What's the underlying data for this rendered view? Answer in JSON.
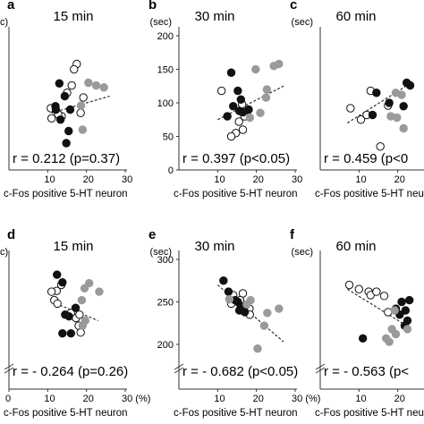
{
  "figure": {
    "xlabel": "c-Fos positive 5-HT neuron",
    "unit_x": "(%)",
    "unit_y": "(sec)",
    "colors": {
      "black": "#111111",
      "gray": "#9a9a9a",
      "open": "#ffffff",
      "line": "#222222"
    }
  },
  "chart_data": [
    {
      "type": "scatter",
      "panel": "a",
      "title": "15 min",
      "show_y_ticks": false,
      "show_y_unit": false,
      "y_unit_display": "c)",
      "xticks": [
        "10",
        "20",
        "30"
      ],
      "x_tick_values": [
        10,
        20,
        30
      ],
      "xlim": [
        0,
        30
      ],
      "ylim": [
        0,
        200
      ],
      "yticks": [],
      "annotation": "r = 0.212 (p=0.37)",
      "fit": {
        "x": [
          11,
          26
        ],
        "y": [
          85,
          110
        ]
      },
      "series": [
        {
          "style": "open",
          "points": [
            [
              17.5,
              158
            ],
            [
              16.8,
              150
            ],
            [
              16.2,
              126
            ],
            [
              15,
              115
            ],
            [
              19.2,
              108
            ],
            [
              18.5,
              85
            ],
            [
              13.6,
              80
            ],
            [
              12.7,
              83
            ],
            [
              11,
              77
            ],
            [
              10.8,
              92
            ]
          ]
        },
        {
          "style": "black",
          "points": [
            [
              13,
              129
            ],
            [
              14.4,
              110
            ],
            [
              12,
              95
            ],
            [
              12.1,
              90
            ],
            [
              15.8,
              90
            ],
            [
              13.3,
              75
            ],
            [
              15.4,
              58
            ],
            [
              14.8,
              40
            ]
          ]
        },
        {
          "style": "gray",
          "points": [
            [
              20.5,
              130
            ],
            [
              22.5,
              126
            ],
            [
              24.5,
              123
            ],
            [
              18.6,
              96
            ],
            [
              19,
              60
            ]
          ]
        }
      ]
    },
    {
      "type": "scatter",
      "panel": "b",
      "title": "30 min",
      "show_y_ticks": true,
      "show_y_unit": true,
      "xticks": [
        "10",
        "20",
        "30"
      ],
      "x_tick_values": [
        10,
        20,
        30
      ],
      "xlim": [
        0,
        30
      ],
      "ylim": [
        0,
        200
      ],
      "yticks": [
        0,
        50,
        100,
        150,
        200
      ],
      "y_tick_labels": [
        "0",
        "50",
        "100",
        "150",
        "200"
      ],
      "annotation": "r = 0.397 (p<0.05)",
      "fit": {
        "x": [
          10,
          27
        ],
        "y": [
          75,
          125
        ]
      },
      "series": [
        {
          "style": "open",
          "points": [
            [
              11,
              118
            ],
            [
              16.3,
              98
            ],
            [
              16.9,
              80
            ],
            [
              15.5,
              72
            ],
            [
              16.5,
              60
            ],
            [
              14.7,
              55
            ],
            [
              13.5,
              50
            ]
          ]
        },
        {
          "style": "black",
          "points": [
            [
              13.5,
              145
            ],
            [
              15.2,
              118
            ],
            [
              16,
              105
            ],
            [
              14,
              95
            ],
            [
              15.6,
              88
            ],
            [
              12.5,
              80
            ],
            [
              18,
              90
            ],
            [
              16.5,
              86
            ]
          ]
        },
        {
          "style": "gray",
          "points": [
            [
              24.5,
              155
            ],
            [
              25.8,
              158
            ],
            [
              19.8,
              150
            ],
            [
              22.7,
              120
            ],
            [
              22.5,
              108
            ],
            [
              21,
              85
            ],
            [
              18.3,
              78
            ]
          ]
        }
      ]
    },
    {
      "type": "scatter",
      "panel": "c",
      "title": "60 min",
      "show_y_ticks": false,
      "show_y_unit": true,
      "xticks": [
        "10",
        "20"
      ],
      "x_tick_values": [
        10,
        20
      ],
      "xlim": [
        0,
        30
      ],
      "ylim": [
        0,
        200
      ],
      "yticks": [],
      "annotation": "r = 0.459 (p<0",
      "fit": {
        "x": [
          7,
          23.5
        ],
        "y": [
          70,
          130
        ]
      },
      "series": [
        {
          "style": "open",
          "points": [
            [
              13,
              118
            ],
            [
              7.8,
              92
            ],
            [
              17.5,
              96
            ],
            [
              12,
              82
            ],
            [
              10.5,
              75
            ],
            [
              15.5,
              35
            ]
          ]
        },
        {
          "style": "black",
          "points": [
            [
              14.5,
              115
            ],
            [
              17.8,
              100
            ],
            [
              22.3,
              130
            ],
            [
              23.2,
              126
            ],
            [
              21.5,
              95
            ],
            [
              13.5,
              82
            ]
          ]
        },
        {
          "style": "gray",
          "points": [
            [
              19.5,
              115
            ],
            [
              21,
              112
            ],
            [
              18.2,
              80
            ],
            [
              19.8,
              78
            ],
            [
              21.5,
              62
            ]
          ]
        }
      ]
    },
    {
      "type": "scatter",
      "panel": "d",
      "title": "15 min",
      "show_y_ticks": false,
      "show_y_unit": false,
      "y_unit_display": "c)",
      "xticks": [
        "0",
        "10",
        "20",
        "30 (%)"
      ],
      "x_tick_values": [
        0,
        10,
        20,
        30
      ],
      "xlim": [
        0,
        30
      ],
      "ylim": [
        180,
        300
      ],
      "yticks": [],
      "annotation": "r = - 0.264 (p=0.26)",
      "fit": {
        "x": [
          11,
          23
        ],
        "y": [
          250,
          228
        ]
      },
      "series": [
        {
          "style": "open",
          "points": [
            [
              13.5,
              270
            ],
            [
              12.3,
              263
            ],
            [
              11,
              262
            ],
            [
              11.7,
              252
            ],
            [
              12.5,
              248
            ],
            [
              16,
              237
            ],
            [
              17.3,
              231
            ],
            [
              18.2,
              235
            ],
            [
              18,
              222
            ],
            [
              18.5,
              214
            ]
          ]
        },
        {
          "style": "black",
          "points": [
            [
              12.4,
              282
            ],
            [
              13.8,
              273
            ],
            [
              17.2,
              243
            ],
            [
              14.5,
              235
            ],
            [
              15.5,
              233
            ],
            [
              13.8,
              213
            ],
            [
              16,
              213
            ]
          ]
        },
        {
          "style": "gray",
          "points": [
            [
              20.7,
              272
            ],
            [
              19.5,
              266
            ],
            [
              18.8,
              252
            ],
            [
              23.3,
              262
            ],
            [
              19.7,
              228
            ],
            [
              19,
              222
            ]
          ]
        }
      ]
    },
    {
      "type": "scatter",
      "panel": "e",
      "title": "30 min",
      "show_y_ticks": true,
      "show_y_unit": true,
      "xticks": [
        "10",
        "20",
        "30 (%)"
      ],
      "x_tick_values": [
        10,
        20,
        30
      ],
      "xlim": [
        0,
        30
      ],
      "ylim": [
        180,
        300
      ],
      "yticks": [
        200,
        250,
        300
      ],
      "y_tick_labels": [
        "200",
        "250",
        "300"
      ],
      "annotation": "r = - 0.682 (p<0.05)",
      "fit": {
        "x": [
          10,
          27
        ],
        "y": [
          270,
          203
        ]
      },
      "series": [
        {
          "style": "open",
          "points": [
            [
              14,
              258
            ],
            [
              16.5,
              260
            ],
            [
              15.8,
              252
            ],
            [
              18.2,
              242
            ],
            [
              18.3,
              235
            ],
            [
              13.5,
              248
            ]
          ]
        },
        {
          "style": "black",
          "points": [
            [
              11.5,
              275
            ],
            [
              12.8,
              262
            ],
            [
              14.5,
              252
            ],
            [
              15.2,
              250
            ],
            [
              16,
              245
            ],
            [
              16.8,
              243
            ],
            [
              15.6,
              240
            ],
            [
              17,
              238
            ]
          ]
        },
        {
          "style": "gray",
          "points": [
            [
              13,
              253
            ],
            [
              17.5,
              247
            ],
            [
              18.5,
              252
            ],
            [
              22.8,
              237
            ],
            [
              25.8,
              242
            ],
            [
              22,
              222
            ],
            [
              20.3,
              195
            ]
          ]
        }
      ]
    },
    {
      "type": "scatter",
      "panel": "f",
      "title": "60 min",
      "show_y_ticks": false,
      "show_y_unit": true,
      "xticks": [
        "10",
        "20"
      ],
      "x_tick_values": [
        10,
        20
      ],
      "xlim": [
        0,
        30
      ],
      "ylim": [
        180,
        300
      ],
      "yticks": [],
      "annotation": "r = - 0.563 (p<",
      "fit": {
        "x": [
          7,
          23
        ],
        "y": [
          265,
          220
        ]
      },
      "series": [
        {
          "style": "open",
          "points": [
            [
              7.5,
              270
            ],
            [
              10,
              265
            ],
            [
              12.5,
              262
            ],
            [
              13,
              258
            ],
            [
              14.5,
              262
            ],
            [
              16.5,
              257
            ],
            [
              17.5,
              238
            ]
          ]
        },
        {
          "style": "black",
          "points": [
            [
              21,
              250
            ],
            [
              23,
              252
            ],
            [
              19.5,
              242
            ],
            [
              22,
              240
            ],
            [
              20.5,
              235
            ],
            [
              22.5,
              228
            ],
            [
              21.8,
              222
            ],
            [
              11,
              207
            ]
          ]
        },
        {
          "style": "gray",
          "points": [
            [
              19.2,
              240
            ],
            [
              18.5,
              218
            ],
            [
              19.5,
              212
            ],
            [
              17,
              207
            ],
            [
              17.8,
              203
            ],
            [
              22.5,
              218
            ]
          ]
        }
      ]
    }
  ]
}
